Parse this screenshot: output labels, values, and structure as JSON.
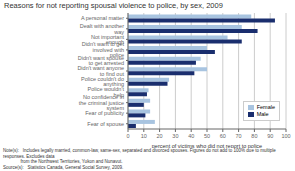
{
  "chart_data": {
    "type": "bar",
    "orientation": "horizontal",
    "title": "Reasons for not reporting spousal violence to police, by sex, 2009",
    "categories": [
      "Fear of spouse",
      "Fear of publicity",
      "No confidence in the criminal justice system",
      "Police wouldn't help",
      "Police couldn't do anything",
      "Didn't want anyone to find out",
      "Didn't want spouse to get arrested",
      "Didn't want to get involved with police",
      "Not important enough",
      "Dealt with another way",
      "A personal matter"
    ],
    "series": [
      {
        "name": "Female",
        "color": "#a8c4e0",
        "values": [
          17,
          14,
          14,
          13,
          26,
          50,
          46,
          50,
          63,
          72,
          78
        ]
      },
      {
        "name": "Male",
        "color": "#1a2e6e",
        "values": [
          5,
          11,
          10,
          12,
          25,
          42,
          43,
          55,
          72,
          82,
          93
        ]
      }
    ],
    "xlabel": "percent of victims who did not report to police",
    "xlim": [
      0,
      100
    ],
    "xticks": [
      0,
      10,
      20,
      30,
      40,
      50,
      60,
      70,
      80,
      90,
      100
    ],
    "grid": true,
    "legend": "lower right",
    "annotations": [
      "Note(s):   Includes legally married, common-law, same-sex, separated and divorced spouses. Figures do not add to 100% due to multiple responses. Excludes data",
      "              from the Northwest Territories, Yukon and Nunavut.",
      "Source(s):   Statistics Canada, General Social Survey, 2009."
    ]
  }
}
